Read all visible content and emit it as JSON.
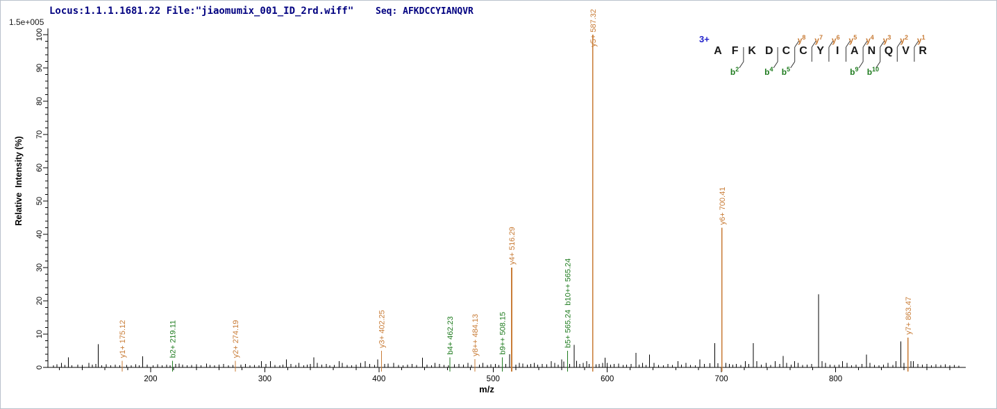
{
  "header": {
    "locus_file": "Locus:1.1.1.1681.22 File:\"jiaomumix_001_ID_2rd.wiff\"",
    "seq_label": "Seq:",
    "sequence": "AFKDCCYIANQVR"
  },
  "sequence_diagram": {
    "charge_label": "3+",
    "residues": [
      "A",
      "F",
      "K",
      "D",
      "C",
      "C",
      "Y",
      "I",
      "A",
      "N",
      "Q",
      "V",
      "R"
    ],
    "y_ions": [
      {
        "gap": 5,
        "num": "8"
      },
      {
        "gap": 6,
        "num": "7"
      },
      {
        "gap": 7,
        "num": "6"
      },
      {
        "gap": 8,
        "num": "5"
      },
      {
        "gap": 9,
        "num": "4"
      },
      {
        "gap": 10,
        "num": "3"
      },
      {
        "gap": 11,
        "num": "2"
      },
      {
        "gap": 12,
        "num": "1"
      }
    ],
    "b_ions": [
      {
        "gap": 2,
        "num": "2"
      },
      {
        "gap": 4,
        "num": "4"
      },
      {
        "gap": 5,
        "num": "5"
      },
      {
        "gap": 9,
        "num": "9"
      },
      {
        "gap": 10,
        "num": "10"
      }
    ]
  },
  "chart_data": {
    "type": "bar",
    "subtype": "mass-spectrum",
    "title": "",
    "xlabel": "m/z",
    "ylabel": "Relative  Intensity (%)",
    "scale_label": "1.5e+005",
    "x_range": [
      110,
      914
    ],
    "ylim": [
      0,
      100
    ],
    "x_major_ticks": [
      200,
      300,
      400,
      500,
      600,
      700,
      800
    ],
    "x_minor_step": 20,
    "y_major_ticks": [
      0,
      10,
      20,
      30,
      40,
      50,
      60,
      70,
      80,
      90,
      100
    ],
    "y_minor_step": 2,
    "grid": false,
    "legend": "none",
    "labeled_peaks": [
      {
        "id": "y1",
        "label": "y1+ 175.12",
        "mz": 175.12,
        "intensity": 2,
        "series": "y"
      },
      {
        "id": "b2",
        "label": "b2+ 219.11",
        "mz": 219.11,
        "intensity": 2,
        "series": "b"
      },
      {
        "id": "y2",
        "label": "y2+ 274.19",
        "mz": 274.19,
        "intensity": 2,
        "series": "y"
      },
      {
        "id": "y3",
        "label": "y3+ 402.25",
        "mz": 402.25,
        "intensity": 5,
        "series": "y"
      },
      {
        "id": "b4",
        "label": "b4+ 462.23",
        "mz": 462.23,
        "intensity": 3,
        "series": "b"
      },
      {
        "id": "y8pp",
        "label": "y8++ 484.13",
        "mz": 484.13,
        "intensity": 2.5,
        "series": "y"
      },
      {
        "id": "b9pp",
        "label": "b9++ 508.15",
        "mz": 508.15,
        "intensity": 3,
        "series": "b"
      },
      {
        "id": "y4",
        "label": "y4+ 516.29",
        "mz": 516.29,
        "intensity": 30,
        "series": "y"
      },
      {
        "id": "b5",
        "label": "b5+ 565.24",
        "mz": 565.24,
        "intensity": 5,
        "series": "b",
        "label2": "b10++ 565.24"
      },
      {
        "id": "y5",
        "label": "y5+ 587.32",
        "mz": 587.32,
        "intensity": 100,
        "series": "y"
      },
      {
        "id": "y6",
        "label": "y6+ 700.41",
        "mz": 700.41,
        "intensity": 42,
        "series": "y"
      },
      {
        "id": "y7",
        "label": "y7+ 863.47",
        "mz": 863.47,
        "intensity": 9,
        "series": "y"
      }
    ],
    "unlabeled_peaks": [
      [
        115,
        0.6
      ],
      [
        118,
        0.9
      ],
      [
        122,
        1.4
      ],
      [
        125,
        0.7
      ],
      [
        128,
        3
      ],
      [
        131,
        0.6
      ],
      [
        136,
        0.8
      ],
      [
        140,
        0.7
      ],
      [
        146,
        1.4
      ],
      [
        149,
        0.8
      ],
      [
        152,
        1
      ],
      [
        154,
        7
      ],
      [
        157,
        0.6
      ],
      [
        161,
        0.9
      ],
      [
        165,
        0.6
      ],
      [
        169,
        0.8
      ],
      [
        173,
        0.6
      ],
      [
        179,
        0.7
      ],
      [
        183,
        0.6
      ],
      [
        187,
        0.9
      ],
      [
        190,
        0.6
      ],
      [
        193,
        3.3
      ],
      [
        197,
        0.8
      ],
      [
        202,
        0.6
      ],
      [
        206,
        0.9
      ],
      [
        210,
        0.6
      ],
      [
        214,
        0.8
      ],
      [
        217,
        0.6
      ],
      [
        222,
        1
      ],
      [
        225,
        1.1
      ],
      [
        228,
        0.8
      ],
      [
        232,
        0.6
      ],
      [
        236,
        0.7
      ],
      [
        240,
        0.9
      ],
      [
        244,
        0.6
      ],
      [
        249,
        1.1
      ],
      [
        252,
        0.7
      ],
      [
        256,
        0.6
      ],
      [
        260,
        0.8
      ],
      [
        264,
        1
      ],
      [
        268,
        0.6
      ],
      [
        272,
        0.7
      ],
      [
        279,
        0.8
      ],
      [
        283,
        1
      ],
      [
        287,
        0.6
      ],
      [
        291,
        0.7
      ],
      [
        295,
        0.6
      ],
      [
        297,
        1.9
      ],
      [
        301,
        1
      ],
      [
        305,
        1.9
      ],
      [
        309,
        0.7
      ],
      [
        313,
        0.6
      ],
      [
        316,
        0.8
      ],
      [
        319,
        2.4
      ],
      [
        323,
        1
      ],
      [
        327,
        0.7
      ],
      [
        330,
        1.4
      ],
      [
        334,
        0.6
      ],
      [
        337,
        0.8
      ],
      [
        340,
        1
      ],
      [
        343,
        3
      ],
      [
        346,
        1.4
      ],
      [
        350,
        0.8
      ],
      [
        354,
        1
      ],
      [
        357,
        0.6
      ],
      [
        361,
        0.7
      ],
      [
        365,
        1.9
      ],
      [
        368,
        1.4
      ],
      [
        372,
        0.7
      ],
      [
        376,
        0.6
      ],
      [
        380,
        0.8
      ],
      [
        384,
        1.4
      ],
      [
        388,
        1.9
      ],
      [
        392,
        1
      ],
      [
        396,
        0.7
      ],
      [
        399,
        2.4
      ],
      [
        405,
        1
      ],
      [
        408,
        1.1
      ],
      [
        413,
        1.4
      ],
      [
        417,
        0.7
      ],
      [
        421,
        0.6
      ],
      [
        425,
        0.8
      ],
      [
        429,
        1
      ],
      [
        433,
        0.7
      ],
      [
        438,
        2.9
      ],
      [
        442,
        0.8
      ],
      [
        446,
        0.6
      ],
      [
        449,
        1.4
      ],
      [
        453,
        1
      ],
      [
        457,
        0.7
      ],
      [
        461,
        0.6
      ],
      [
        466,
        0.9
      ],
      [
        470,
        1
      ],
      [
        474,
        0.8
      ],
      [
        478,
        1.4
      ],
      [
        481,
        0.7
      ],
      [
        488,
        0.8
      ],
      [
        491,
        1.4
      ],
      [
        495,
        0.7
      ],
      [
        498,
        0.9
      ],
      [
        502,
        1
      ],
      [
        505,
        0.7
      ],
      [
        511,
        1
      ],
      [
        514.5,
        4
      ],
      [
        520,
        0.8
      ],
      [
        523,
        1.4
      ],
      [
        526,
        1.1
      ],
      [
        530,
        0.8
      ],
      [
        533,
        1
      ],
      [
        536,
        1.4
      ],
      [
        539,
        0.8
      ],
      [
        543,
        1
      ],
      [
        547,
        0.9
      ],
      [
        551,
        1.9
      ],
      [
        554,
        1.4
      ],
      [
        557,
        0.8
      ],
      [
        560,
        2.4
      ],
      [
        562,
        1.8
      ],
      [
        567,
        1
      ],
      [
        571,
        6.8
      ],
      [
        573,
        2
      ],
      [
        576,
        1
      ],
      [
        579,
        1.4
      ],
      [
        582,
        1.9
      ],
      [
        584,
        1
      ],
      [
        590,
        0.9
      ],
      [
        593,
        1
      ],
      [
        596,
        1.4
      ],
      [
        598,
        2.9
      ],
      [
        600,
        1.4
      ],
      [
        603,
        0.8
      ],
      [
        606,
        1
      ],
      [
        610,
        1.1
      ],
      [
        614,
        0.7
      ],
      [
        617,
        0.8
      ],
      [
        621,
        1
      ],
      [
        625,
        4.4
      ],
      [
        628,
        0.8
      ],
      [
        631,
        1.4
      ],
      [
        634,
        0.7
      ],
      [
        637,
        3.9
      ],
      [
        641,
        1.4
      ],
      [
        645,
        0.7
      ],
      [
        649,
        0.6
      ],
      [
        653,
        1
      ],
      [
        657,
        0.7
      ],
      [
        662,
        1.9
      ],
      [
        665,
        0.8
      ],
      [
        669,
        1.4
      ],
      [
        673,
        0.7
      ],
      [
        677,
        0.6
      ],
      [
        681,
        2.4
      ],
      [
        685,
        1
      ],
      [
        690,
        1.2
      ],
      [
        694,
        7.3
      ],
      [
        697,
        1.2
      ],
      [
        704,
        1.4
      ],
      [
        707,
        1
      ],
      [
        710,
        0.8
      ],
      [
        713,
        1
      ],
      [
        717,
        0.7
      ],
      [
        721,
        1.9
      ],
      [
        724,
        1
      ],
      [
        728,
        7.3
      ],
      [
        731,
        1.9
      ],
      [
        735,
        0.8
      ],
      [
        739,
        1.4
      ],
      [
        743,
        0.7
      ],
      [
        747,
        1.9
      ],
      [
        751,
        1
      ],
      [
        754,
        3.4
      ],
      [
        757,
        1.4
      ],
      [
        761,
        0.8
      ],
      [
        764,
        1.9
      ],
      [
        767,
        1.4
      ],
      [
        771,
        0.7
      ],
      [
        775,
        0.8
      ],
      [
        779,
        1
      ],
      [
        785,
        22
      ],
      [
        788,
        1.9
      ],
      [
        791,
        1.4
      ],
      [
        795,
        0.8
      ],
      [
        799,
        0.7
      ],
      [
        803,
        0.8
      ],
      [
        806,
        1.9
      ],
      [
        810,
        1.4
      ],
      [
        814,
        0.6
      ],
      [
        818,
        0.8
      ],
      [
        823,
        1
      ],
      [
        827,
        3.9
      ],
      [
        830,
        1.4
      ],
      [
        834,
        0.7
      ],
      [
        838,
        0.6
      ],
      [
        842,
        0.8
      ],
      [
        846,
        1.4
      ],
      [
        850,
        0.7
      ],
      [
        853,
        1.9
      ],
      [
        857,
        7.8
      ],
      [
        860,
        1.4
      ],
      [
        866,
        1.9
      ],
      [
        868,
        1.9
      ],
      [
        872,
        1
      ],
      [
        876,
        0.8
      ],
      [
        880,
        1
      ],
      [
        884,
        0.6
      ],
      [
        888,
        0.9
      ],
      [
        892,
        0.7
      ],
      [
        896,
        0.9
      ],
      [
        900,
        0.6
      ],
      [
        904,
        0.7
      ],
      [
        908,
        0.5
      ]
    ]
  },
  "colors": {
    "y_ion": "#c87b35",
    "b_ion": "#1e7b1e",
    "noise_peak": "#000000",
    "axis": "#000000",
    "header_text": "#000080",
    "charge": "#2222cc",
    "frame_border": "#b9c1cc"
  }
}
